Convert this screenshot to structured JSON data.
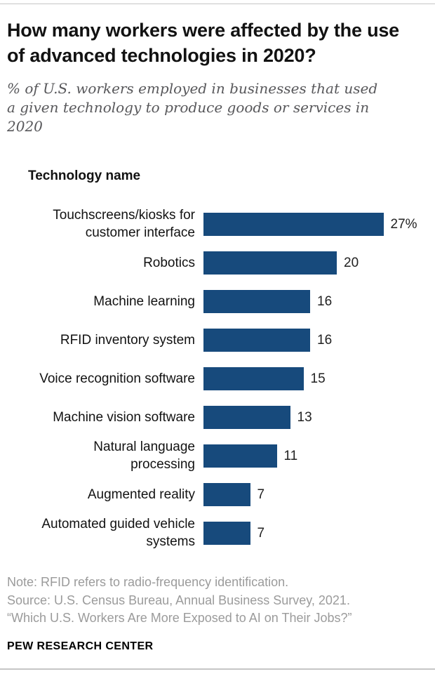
{
  "header": {
    "title": "How many workers were affected by the use of advanced technologies in 2020?",
    "subtitle": "% of U.S. workers employed in businesses that used a given technology to produce goods or services in 2020"
  },
  "chart": {
    "axis_label": "Technology name"
  },
  "chart_data": {
    "type": "bar",
    "orientation": "horizontal",
    "title": "How many workers were affected by the use of advanced technologies in 2020?",
    "ylabel": "Technology name",
    "xlabel": "",
    "xlim": [
      0,
      30
    ],
    "grid": false,
    "legend": false,
    "bar_color": "#174A7C",
    "categories": [
      "Touchscreens/kiosks for customer interface",
      "Robotics",
      "Machine learning",
      "RFID inventory system",
      "Voice recognition software",
      "Machine vision software",
      "Natural language processing",
      "Augmented reality",
      "Automated guided vehicle systems"
    ],
    "display_labels": [
      "Touchscreens/kiosks for\ncustomer interface",
      "Robotics",
      "Machine learning",
      "RFID inventory system",
      "Voice recognition software",
      "Machine vision software",
      "Natural language\nprocessing",
      "Augmented reality",
      "Automated guided vehicle\nsystems"
    ],
    "values": [
      27,
      20,
      16,
      16,
      15,
      13,
      11,
      7,
      7
    ],
    "value_labels": [
      "27%",
      "20",
      "16",
      "16",
      "15",
      "13",
      "11",
      "7",
      "7"
    ]
  },
  "footer": {
    "note": "Note: RFID refers to radio-frequency identification.",
    "source": "Source: U.S. Census Bureau, Annual Business Survey, 2021.",
    "report": "“Which U.S. Workers Are More Exposed to AI on Their Jobs?”",
    "brand": "PEW RESEARCH CENTER"
  }
}
